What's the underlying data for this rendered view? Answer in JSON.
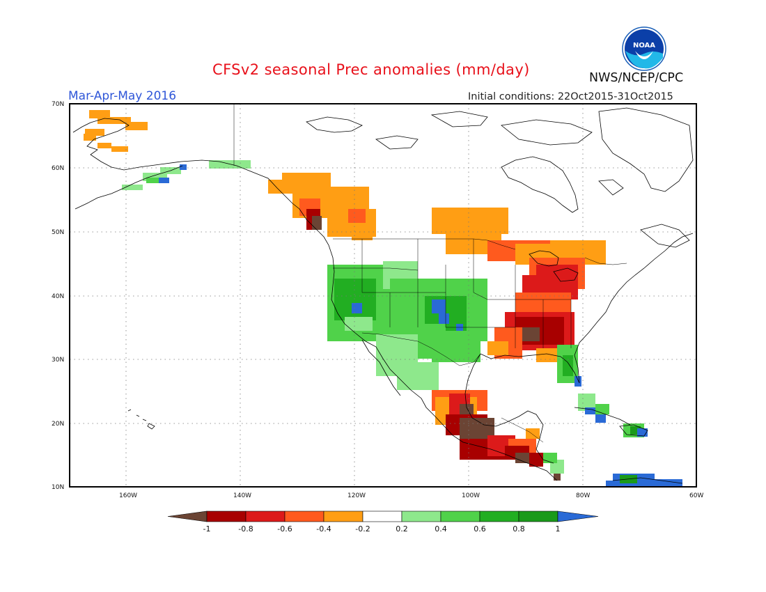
{
  "header": {
    "title": "CFSv2 seasonal Prec anomalies (mm/day)",
    "season": "Mar-Apr-May 2016",
    "initial_conditions": "Initial conditions: 22Oct2015-31Oct2015",
    "agency": "NWS/NCEP/CPC",
    "logo_text": "NOAA"
  },
  "map": {
    "lon_labels": [
      "160W",
      "140W",
      "120W",
      "100W",
      "80W",
      "60W"
    ],
    "lat_labels": [
      "70N",
      "60N",
      "50N",
      "40N",
      "30N",
      "20N",
      "10N"
    ]
  },
  "legend": {
    "labels": [
      "-1",
      "-0.8",
      "-0.6",
      "-0.4",
      "-0.2",
      "0.2",
      "0.4",
      "0.6",
      "0.8",
      "1"
    ],
    "colors": [
      "#6b4434",
      "#a80000",
      "#dc1a1a",
      "#ff5a1e",
      "#ff9e14",
      "#ffffff",
      "#8ee88c",
      "#50d24a",
      "#22ae22",
      "#1a9a1a",
      "#2a6ad6"
    ]
  },
  "colors": {
    "title": "#e8101a",
    "season": "#2f56d8"
  }
}
